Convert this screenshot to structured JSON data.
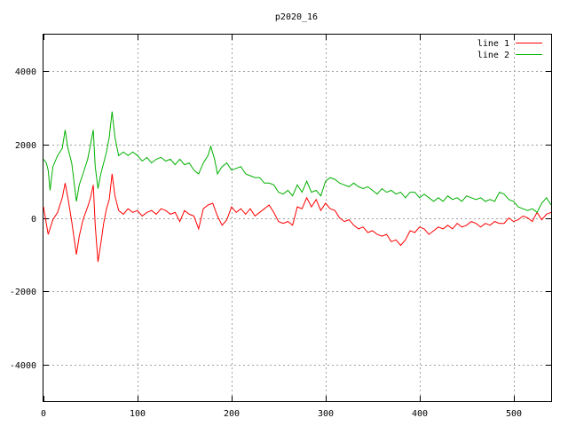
{
  "chart_data": {
    "type": "line",
    "title": "p2020_16",
    "xlabel": "",
    "ylabel": "",
    "xlim": [
      0,
      540
    ],
    "ylim": [
      -5000,
      5000
    ],
    "xticks": [
      0,
      100,
      200,
      300,
      400,
      500
    ],
    "yticks": [
      -4000,
      -2000,
      0,
      2000,
      4000
    ],
    "xtick_labels": [
      "0",
      "100",
      "200",
      "300",
      "400",
      "500"
    ],
    "ytick_labels": [
      "-4000",
      "-2000",
      "0",
      "2000",
      "4000"
    ],
    "grid": true,
    "legend_position": "top-right",
    "series": [
      {
        "name": "line 1",
        "color": "#ff0000",
        "points": [
          [
            0,
            300
          ],
          [
            5,
            -450
          ],
          [
            10,
            -50
          ],
          [
            15,
            150
          ],
          [
            20,
            550
          ],
          [
            23,
            950
          ],
          [
            26,
            550
          ],
          [
            30,
            -100
          ],
          [
            35,
            -1000
          ],
          [
            38,
            -500
          ],
          [
            42,
            -50
          ],
          [
            47,
            300
          ],
          [
            50,
            550
          ],
          [
            53,
            900
          ],
          [
            55,
            -200
          ],
          [
            58,
            -1200
          ],
          [
            61,
            -700
          ],
          [
            64,
            -150
          ],
          [
            67,
            250
          ],
          [
            70,
            500
          ],
          [
            73,
            1200
          ],
          [
            76,
            600
          ],
          [
            80,
            200
          ],
          [
            85,
            100
          ],
          [
            90,
            250
          ],
          [
            95,
            150
          ],
          [
            100,
            200
          ],
          [
            105,
            50
          ],
          [
            110,
            150
          ],
          [
            115,
            200
          ],
          [
            120,
            100
          ],
          [
            125,
            250
          ],
          [
            130,
            200
          ],
          [
            135,
            100
          ],
          [
            140,
            150
          ],
          [
            145,
            -100
          ],
          [
            150,
            200
          ],
          [
            155,
            100
          ],
          [
            160,
            50
          ],
          [
            165,
            -300
          ],
          [
            170,
            250
          ],
          [
            175,
            350
          ],
          [
            180,
            400
          ],
          [
            185,
            50
          ],
          [
            190,
            -200
          ],
          [
            195,
            -50
          ],
          [
            200,
            300
          ],
          [
            205,
            150
          ],
          [
            210,
            250
          ],
          [
            215,
            100
          ],
          [
            220,
            250
          ],
          [
            225,
            50
          ],
          [
            230,
            150
          ],
          [
            235,
            250
          ],
          [
            240,
            350
          ],
          [
            245,
            150
          ],
          [
            250,
            -100
          ],
          [
            255,
            -150
          ],
          [
            260,
            -100
          ],
          [
            265,
            -200
          ],
          [
            270,
            300
          ],
          [
            275,
            250
          ],
          [
            280,
            550
          ],
          [
            285,
            300
          ],
          [
            290,
            500
          ],
          [
            295,
            200
          ],
          [
            300,
            400
          ],
          [
            305,
            250
          ],
          [
            310,
            200
          ],
          [
            315,
            0
          ],
          [
            320,
            -100
          ],
          [
            325,
            -50
          ],
          [
            330,
            -200
          ],
          [
            335,
            -300
          ],
          [
            340,
            -250
          ],
          [
            345,
            -400
          ],
          [
            350,
            -350
          ],
          [
            355,
            -450
          ],
          [
            360,
            -500
          ],
          [
            365,
            -450
          ],
          [
            370,
            -650
          ],
          [
            375,
            -600
          ],
          [
            380,
            -750
          ],
          [
            385,
            -600
          ],
          [
            390,
            -350
          ],
          [
            395,
            -400
          ],
          [
            400,
            -250
          ],
          [
            405,
            -300
          ],
          [
            410,
            -450
          ],
          [
            415,
            -350
          ],
          [
            420,
            -250
          ],
          [
            425,
            -300
          ],
          [
            430,
            -200
          ],
          [
            435,
            -300
          ],
          [
            440,
            -150
          ],
          [
            445,
            -250
          ],
          [
            450,
            -200
          ],
          [
            455,
            -100
          ],
          [
            460,
            -150
          ],
          [
            465,
            -250
          ],
          [
            470,
            -150
          ],
          [
            475,
            -200
          ],
          [
            480,
            -100
          ],
          [
            485,
            -150
          ],
          [
            490,
            -150
          ],
          [
            495,
            0
          ],
          [
            500,
            -100
          ],
          [
            505,
            -50
          ],
          [
            510,
            50
          ],
          [
            515,
            0
          ],
          [
            520,
            -100
          ],
          [
            525,
            150
          ],
          [
            530,
            -50
          ],
          [
            535,
            100
          ],
          [
            540,
            150
          ]
        ]
      },
      {
        "name": "line 2",
        "color": "#00b000",
        "points": [
          [
            0,
            1600
          ],
          [
            3,
            1500
          ],
          [
            5,
            1300
          ],
          [
            7,
            750
          ],
          [
            10,
            1400
          ],
          [
            15,
            1700
          ],
          [
            20,
            1900
          ],
          [
            23,
            2400
          ],
          [
            26,
            1900
          ],
          [
            30,
            1500
          ],
          [
            35,
            450
          ],
          [
            38,
            900
          ],
          [
            42,
            1200
          ],
          [
            47,
            1600
          ],
          [
            50,
            2000
          ],
          [
            53,
            2400
          ],
          [
            55,
            1400
          ],
          [
            58,
            800
          ],
          [
            61,
            1200
          ],
          [
            64,
            1500
          ],
          [
            67,
            1800
          ],
          [
            70,
            2200
          ],
          [
            73,
            2900
          ],
          [
            76,
            2200
          ],
          [
            80,
            1700
          ],
          [
            85,
            1800
          ],
          [
            90,
            1700
          ],
          [
            95,
            1800
          ],
          [
            100,
            1700
          ],
          [
            105,
            1550
          ],
          [
            110,
            1650
          ],
          [
            115,
            1500
          ],
          [
            120,
            1600
          ],
          [
            125,
            1650
          ],
          [
            130,
            1550
          ],
          [
            135,
            1600
          ],
          [
            140,
            1450
          ],
          [
            145,
            1600
          ],
          [
            150,
            1450
          ],
          [
            155,
            1500
          ],
          [
            160,
            1300
          ],
          [
            165,
            1200
          ],
          [
            170,
            1500
          ],
          [
            175,
            1700
          ],
          [
            178,
            1950
          ],
          [
            182,
            1600
          ],
          [
            185,
            1200
          ],
          [
            190,
            1400
          ],
          [
            195,
            1500
          ],
          [
            200,
            1300
          ],
          [
            205,
            1350
          ],
          [
            210,
            1400
          ],
          [
            215,
            1200
          ],
          [
            220,
            1150
          ],
          [
            225,
            1100
          ],
          [
            230,
            1100
          ],
          [
            235,
            950
          ],
          [
            240,
            950
          ],
          [
            245,
            900
          ],
          [
            250,
            700
          ],
          [
            255,
            650
          ],
          [
            260,
            750
          ],
          [
            265,
            600
          ],
          [
            270,
            900
          ],
          [
            275,
            700
          ],
          [
            280,
            1000
          ],
          [
            285,
            700
          ],
          [
            290,
            750
          ],
          [
            295,
            600
          ],
          [
            300,
            1000
          ],
          [
            305,
            1100
          ],
          [
            310,
            1050
          ],
          [
            315,
            950
          ],
          [
            320,
            900
          ],
          [
            325,
            850
          ],
          [
            330,
            950
          ],
          [
            335,
            850
          ],
          [
            340,
            800
          ],
          [
            345,
            850
          ],
          [
            350,
            750
          ],
          [
            355,
            650
          ],
          [
            360,
            800
          ],
          [
            365,
            700
          ],
          [
            370,
            750
          ],
          [
            375,
            650
          ],
          [
            380,
            700
          ],
          [
            385,
            550
          ],
          [
            390,
            700
          ],
          [
            395,
            700
          ],
          [
            400,
            550
          ],
          [
            405,
            650
          ],
          [
            410,
            550
          ],
          [
            415,
            450
          ],
          [
            420,
            550
          ],
          [
            425,
            450
          ],
          [
            430,
            600
          ],
          [
            435,
            500
          ],
          [
            440,
            550
          ],
          [
            445,
            450
          ],
          [
            450,
            600
          ],
          [
            455,
            550
          ],
          [
            460,
            500
          ],
          [
            465,
            550
          ],
          [
            470,
            450
          ],
          [
            475,
            500
          ],
          [
            480,
            450
          ],
          [
            485,
            700
          ],
          [
            490,
            650
          ],
          [
            495,
            500
          ],
          [
            500,
            450
          ],
          [
            505,
            300
          ],
          [
            510,
            250
          ],
          [
            515,
            200
          ],
          [
            520,
            250
          ],
          [
            525,
            150
          ],
          [
            530,
            400
          ],
          [
            535,
            550
          ],
          [
            540,
            350
          ]
        ]
      }
    ]
  }
}
